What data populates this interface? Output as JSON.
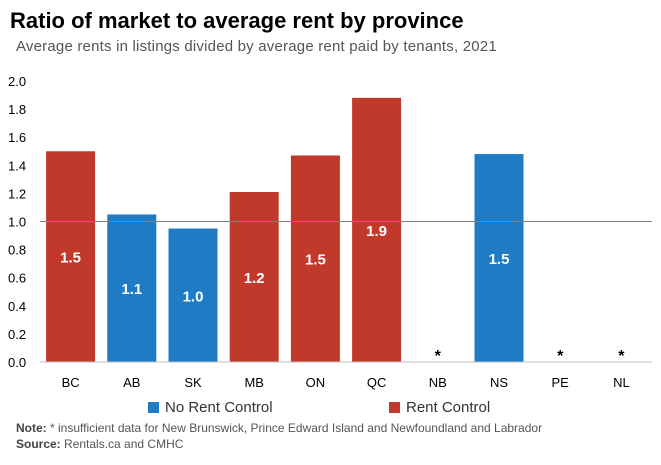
{
  "chart_data": {
    "type": "bar",
    "title": "Ratio of market to average rent by province",
    "subtitle": "Average rents in listings divided by average rent paid by tenants, 2021",
    "categories": [
      "BC",
      "AB",
      "SK",
      "MB",
      "ON",
      "QC",
      "NB",
      "NS",
      "PE",
      "NL"
    ],
    "values": [
      1.5,
      1.05,
      0.95,
      1.21,
      1.47,
      1.88,
      null,
      1.48,
      null,
      null
    ],
    "data_labels": [
      "1.5",
      "1.1",
      "1.0",
      "1.2",
      "1.5",
      "1.9",
      "*",
      "1.5",
      "*",
      "*"
    ],
    "rent_control": [
      true,
      false,
      false,
      true,
      true,
      true,
      null,
      false,
      null,
      null
    ],
    "ylim": [
      0,
      2.0
    ],
    "yticks": [
      "0.0",
      "0.2",
      "0.4",
      "0.6",
      "0.8",
      "1.0",
      "1.2",
      "1.4",
      "1.6",
      "1.8",
      "2.0"
    ],
    "reference_line": 1.0,
    "legend": {
      "placement": "bottom",
      "no_rent_control": "No Rent Control",
      "rent_control": "Rent Control"
    },
    "colors": {
      "no_rent_control": "#1e7bc4",
      "rent_control": "#c0392b"
    },
    "grid": false
  },
  "footer": {
    "note_label": "Note:",
    "note_text": " * insufficient data for New Brunswick, Prince Edward Island and Newfoundland and Labrador",
    "source_label": "Source:",
    "source_text": " Rentals.ca and CMHC"
  }
}
